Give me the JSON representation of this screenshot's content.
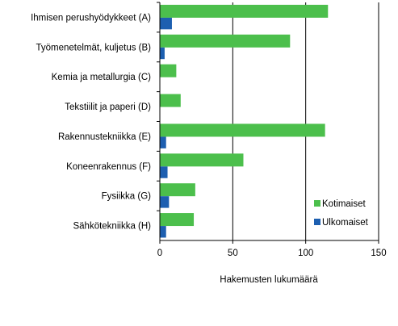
{
  "chart_data": {
    "type": "bar",
    "orientation": "horizontal",
    "title": "",
    "xlabel": "Hakemusten lukumäärä",
    "ylabel": "",
    "categories": [
      "Ihmisen perushyödykkeet (A)",
      "Työmenetelmät, kuljetus (B)",
      "Kemia ja metallurgia (C)",
      "Tekstiilit ja paperi (D)",
      "Rakennustekniikka (E)",
      "Koneenrakennus (F)",
      "Fysiikka (G)",
      "Sähkötekniikka (H)"
    ],
    "series": [
      {
        "name": "Kotimaiset",
        "color": "#4cbf4c",
        "values": [
          115,
          89,
          11,
          14,
          113,
          57,
          24,
          23
        ]
      },
      {
        "name": "Ulkomaiset",
        "color": "#1d5fb0",
        "values": [
          8,
          3,
          0,
          0,
          4,
          5,
          6,
          4
        ]
      }
    ],
    "xlim": [
      0,
      150
    ],
    "xticks": [
      "0",
      "50",
      "100",
      "150"
    ],
    "grid": "vertical gridlines",
    "legend_position": "bottom-right"
  }
}
